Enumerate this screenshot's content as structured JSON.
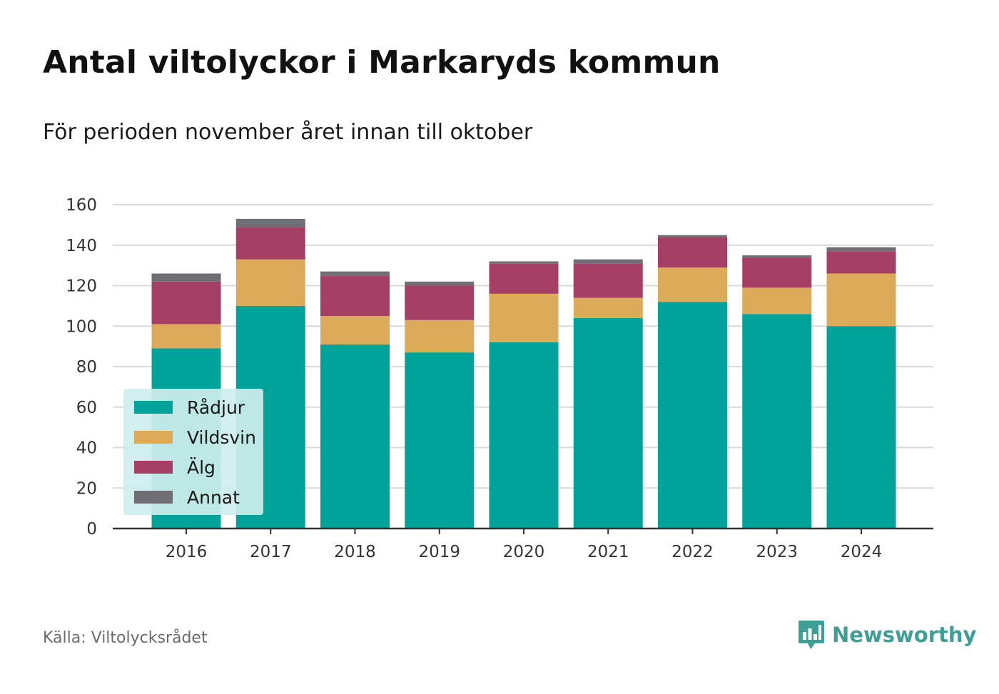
{
  "header": {
    "title": "Antal viltolyckor i Markaryds kommun",
    "subtitle": "För perioden november året innan till oktober"
  },
  "footer": {
    "source": "Källa: Viltolycksrådet",
    "brand": "Newsworthy",
    "brand_icon": "bar-chart-speech-bubble-icon"
  },
  "colors": {
    "Rådjur": "#00a39a",
    "Vildsvin": "#dcab5a",
    "Älg": "#a63f65",
    "Annat": "#6e6e74",
    "brand": "#3d9f96",
    "legend_bg": "#cdeeed"
  },
  "chart_data": {
    "type": "bar",
    "stacked": true,
    "categories": [
      "2016",
      "2017",
      "2018",
      "2019",
      "2020",
      "2021",
      "2022",
      "2023",
      "2024"
    ],
    "series": [
      {
        "name": "Rådjur",
        "values": [
          89,
          110,
          91,
          87,
          92,
          104,
          112,
          106,
          100
        ]
      },
      {
        "name": "Vildsvin",
        "values": [
          12,
          23,
          14,
          16,
          24,
          10,
          17,
          13,
          26
        ]
      },
      {
        "name": "Älg",
        "values": [
          21,
          16,
          20,
          17,
          15,
          17,
          15,
          15,
          11
        ]
      },
      {
        "name": "Annat",
        "values": [
          4,
          4,
          2,
          2,
          1,
          2,
          1,
          1,
          2
        ]
      }
    ],
    "ylim": [
      0,
      160
    ],
    "yticks": [
      0,
      20,
      40,
      60,
      80,
      100,
      120,
      140,
      160
    ],
    "grid": true,
    "legend_position": "bottom-left"
  }
}
